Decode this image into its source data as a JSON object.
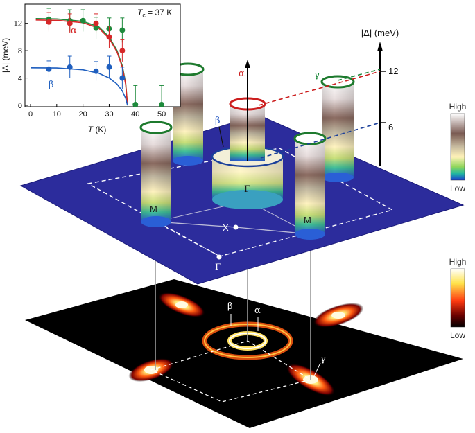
{
  "inset": {
    "tc_label_T": "T",
    "tc_label_sub": "c",
    "tc_label_rest": " = 37 K",
    "ylabel": "|Δ| (meV)",
    "xlabel_T": "T",
    "xlabel_rest": " (K)",
    "xticks": [
      "0",
      "10",
      "20",
      "30",
      "40",
      "50"
    ],
    "yticks": [
      "0",
      "4",
      "8",
      "12"
    ],
    "alpha_label": "α",
    "beta_label": "β"
  },
  "chart_data": {
    "type": "scatter",
    "xlim": [
      0,
      55
    ],
    "ylim": [
      0,
      14
    ],
    "colors": {
      "alpha": "#d62728",
      "beta": "#1f5fbf",
      "gamma": "#1e8a3c"
    },
    "series": [
      {
        "name": "α",
        "color": "#d62728",
        "points": [
          [
            7,
            12.2
          ],
          [
            15,
            12.0
          ],
          [
            25,
            12.0
          ],
          [
            30,
            10.0
          ],
          [
            35,
            8.0
          ]
        ],
        "err": [
          1.4,
          1.4,
          1.4,
          1.6,
          1.6
        ],
        "fit": [
          [
            2,
            12.5
          ],
          [
            10,
            12.45
          ],
          [
            20,
            12.1
          ],
          [
            26,
            11.3
          ],
          [
            30,
            9.8
          ],
          [
            33,
            7.8
          ],
          [
            35,
            5.6
          ],
          [
            36.3,
            3.0
          ],
          [
            37,
            0
          ]
        ]
      },
      {
        "name": "β",
        "color": "#1f5fbf",
        "points": [
          [
            7,
            5.3
          ],
          [
            15,
            5.6
          ],
          [
            25,
            5.0
          ],
          [
            30,
            5.6
          ],
          [
            35,
            4.0
          ]
        ],
        "err": [
          1.2,
          1.6,
          1.4,
          1.6,
          1.6
        ],
        "fit": [
          [
            0,
            5.5
          ],
          [
            10,
            5.47
          ],
          [
            20,
            5.2
          ],
          [
            26,
            4.7
          ],
          [
            30,
            4.0
          ],
          [
            33,
            3.1
          ],
          [
            35,
            2.1
          ],
          [
            36.3,
            1.0
          ],
          [
            37,
            0
          ]
        ]
      },
      {
        "color": "#1e8a3c",
        "points": [
          [
            7,
            12.6
          ],
          [
            15,
            12.4
          ],
          [
            20,
            12.4
          ],
          [
            25,
            11.3
          ],
          [
            30,
            11.2
          ],
          [
            35,
            11.0
          ],
          [
            40,
            0.1
          ],
          [
            50,
            0.1
          ]
        ],
        "err": [
          1.6,
          1.6,
          1.6,
          1.6,
          1.6,
          1.8,
          2.8,
          2.8
        ],
        "fit": [
          [
            2,
            12.7
          ],
          [
            10,
            12.65
          ],
          [
            20,
            12.3
          ],
          [
            26,
            11.5
          ],
          [
            30,
            10.0
          ],
          [
            33,
            8.0
          ],
          [
            35,
            5.8
          ],
          [
            36.3,
            3.2
          ],
          [
            37,
            0
          ]
        ]
      }
    ]
  },
  "main3d": {
    "axis_label": "|Δ| (meV)",
    "tick_12": "12",
    "tick_6": "6",
    "label_alpha": "α",
    "label_beta": "β",
    "label_gamma": "γ",
    "label_gamma_pt": "Γ",
    "label_gamma_pt2": "Γ",
    "label_X": "X",
    "label_M1": "M",
    "label_M2": "M",
    "colorbar_high": "High",
    "colorbar_low": "Low"
  },
  "lower": {
    "label_beta": "β",
    "label_alpha": "α",
    "label_gamma": "γ",
    "colorbar_high": "High",
    "colorbar_low": "Low"
  }
}
